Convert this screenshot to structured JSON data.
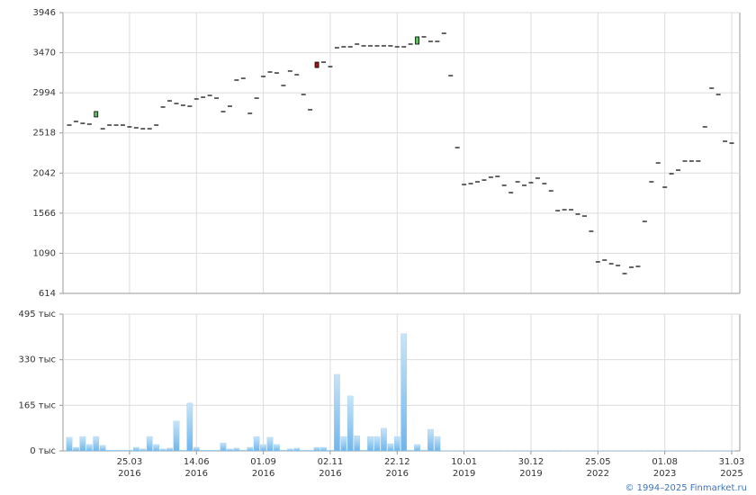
{
  "chart_data": [
    {
      "type": "candlestick",
      "open": [
        2611,
        2654,
        2632,
        2622,
        2708,
        2568,
        2611,
        2611,
        2611,
        2590,
        2579,
        2568,
        2568,
        2611,
        2825,
        2899,
        2867,
        2846,
        2835,
        2921,
        2942,
        2963,
        2931,
        2771,
        2835,
        3145,
        3166,
        2750,
        2931,
        3188,
        3241,
        3230,
        3081,
        3252,
        3209,
        2974,
        2793,
        3358,
        3358,
        3305,
        3529,
        3540,
        3540,
        3572,
        3551,
        3551,
        3551,
        3551,
        3551,
        3540,
        3540,
        3572,
        3572,
        3658,
        3604,
        3604,
        3700,
        3198,
        2344,
        1906,
        1917,
        1938,
        1959,
        1992,
        2002,
        1896,
        1810,
        1938,
        1896,
        1928,
        1981,
        1917,
        1831,
        1596,
        1607,
        1607,
        1554,
        1532,
        1351,
        988,
        1009,
        966,
        945,
        849,
        924,
        934,
        1468,
        1938,
        2162,
        1874,
        2034,
        2077,
        2184,
        2184,
        2184,
        2590,
        3049,
        2974,
        2419,
        2397
      ],
      "close": [
        2611,
        2654,
        2632,
        2622,
        2772,
        2568,
        2611,
        2611,
        2611,
        2590,
        2579,
        2568,
        2568,
        2611,
        2825,
        2899,
        2867,
        2846,
        2835,
        2921,
        2942,
        2963,
        2931,
        2771,
        2835,
        3145,
        3166,
        2750,
        2931,
        3188,
        3241,
        3230,
        3081,
        3252,
        3209,
        2974,
        2793,
        3294,
        3358,
        3305,
        3529,
        3540,
        3540,
        3572,
        3551,
        3551,
        3551,
        3551,
        3551,
        3540,
        3540,
        3572,
        3658,
        3658,
        3604,
        3604,
        3700,
        3198,
        2344,
        1906,
        1917,
        1938,
        1959,
        1992,
        2002,
        1896,
        1810,
        1938,
        1896,
        1928,
        1981,
        1917,
        1831,
        1596,
        1607,
        1607,
        1554,
        1532,
        1351,
        988,
        1009,
        966,
        945,
        849,
        924,
        934,
        1468,
        1938,
        2162,
        1874,
        2034,
        2077,
        2184,
        2184,
        2184,
        2590,
        3049,
        2974,
        2419,
        2397
      ],
      "up_color": "#5cc05c",
      "down_color": "#b01010",
      "flat_color": "#000000",
      "ylim": [
        614,
        3946
      ],
      "yticks": [
        614,
        1090,
        1566,
        2042,
        2518,
        2994,
        3470,
        3946
      ],
      "grid": true
    },
    {
      "type": "bar",
      "categories": [
        null,
        null,
        null,
        null,
        null,
        null,
        null,
        null,
        null,
        [
          "25.03",
          "2016"
        ],
        null,
        null,
        null,
        null,
        null,
        null,
        null,
        null,
        null,
        [
          "14.06",
          "2016"
        ],
        null,
        null,
        null,
        null,
        null,
        null,
        null,
        null,
        null,
        [
          "01.09",
          "2016"
        ],
        null,
        null,
        null,
        null,
        null,
        null,
        null,
        null,
        null,
        [
          "02.11",
          "2016"
        ],
        null,
        null,
        null,
        null,
        null,
        null,
        null,
        null,
        null,
        [
          "22.12",
          "2016"
        ],
        null,
        null,
        null,
        null,
        null,
        null,
        null,
        null,
        null,
        [
          "10.01",
          "2019"
        ],
        null,
        null,
        null,
        null,
        null,
        null,
        null,
        null,
        null,
        [
          "30.12",
          "2019"
        ],
        null,
        null,
        null,
        null,
        null,
        null,
        null,
        null,
        null,
        [
          "25.05",
          "2022"
        ],
        null,
        null,
        null,
        null,
        null,
        null,
        null,
        null,
        null,
        [
          "01.08",
          "2023"
        ],
        null,
        null,
        null,
        null,
        null,
        null,
        null,
        null,
        null,
        [
          "31.03",
          "2025"
        ]
      ],
      "values": [
        49,
        13,
        52,
        23,
        52,
        20,
        3,
        3,
        3,
        3,
        13,
        7,
        52,
        23,
        7,
        10,
        108,
        3,
        173,
        13,
        3,
        3,
        3,
        29,
        7,
        10,
        3,
        13,
        52,
        23,
        49,
        23,
        3,
        7,
        10,
        3,
        3,
        13,
        13,
        3,
        277,
        52,
        199,
        55,
        3,
        52,
        52,
        82,
        26,
        52,
        424,
        3,
        23,
        3,
        78,
        52,
        1,
        1,
        1,
        1,
        1,
        1,
        1,
        1,
        1,
        1,
        1,
        1,
        1,
        1,
        1,
        1,
        1,
        1,
        1,
        1,
        1,
        1,
        1,
        1,
        1,
        1,
        1,
        1,
        1,
        1,
        1,
        1,
        1,
        1,
        1,
        1,
        1,
        1,
        1,
        1,
        1,
        1,
        1,
        1
      ],
      "color": "#8ec8f0",
      "ylim": [
        0,
        495
      ],
      "yticks": [
        {
          "value": 0,
          "label": "0 тыс"
        },
        {
          "value": 165,
          "label": "165 тыс"
        },
        {
          "value": 330,
          "label": "330 тыс"
        },
        {
          "value": 495,
          "label": "495 тыс"
        }
      ],
      "grid": true
    }
  ],
  "footer": "© 1994–2025 Finmarket.ru"
}
